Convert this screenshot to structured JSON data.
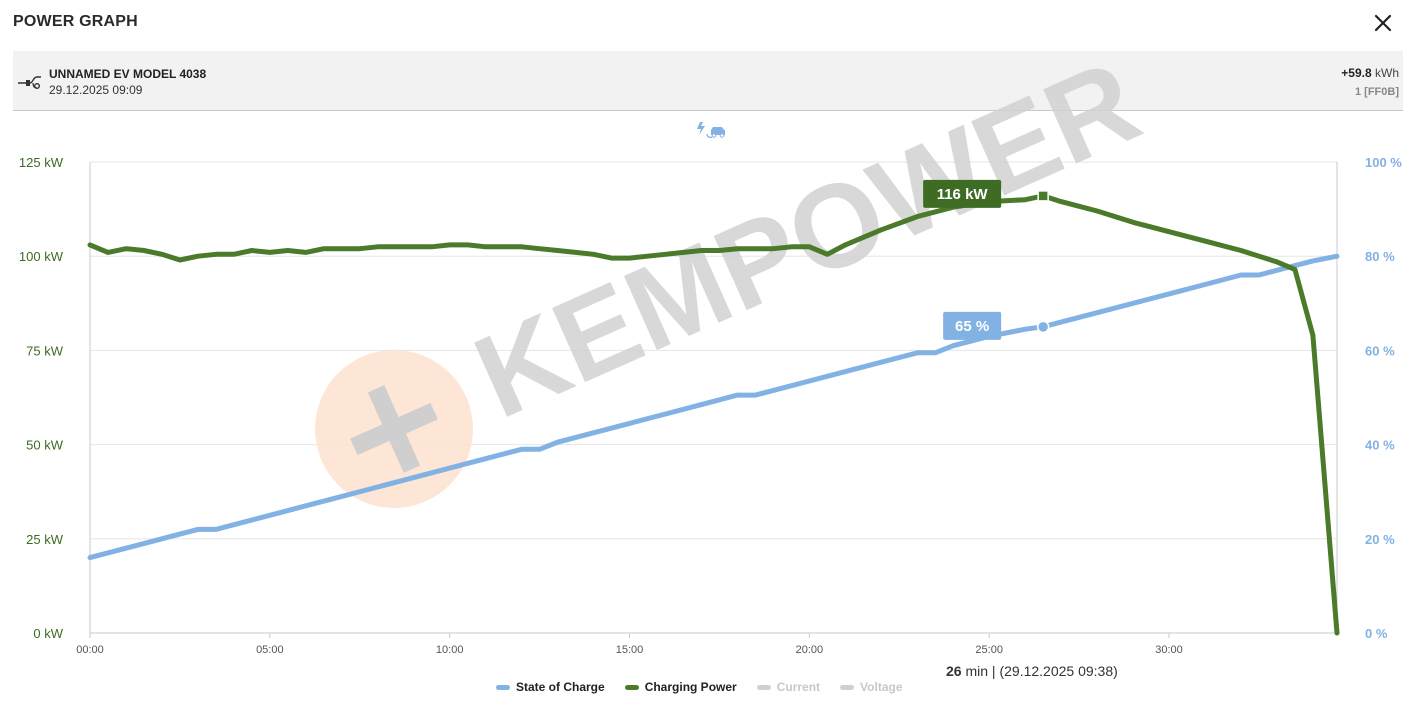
{
  "dialog": {
    "title": "POWER GRAPH"
  },
  "session": {
    "vehicle": "UNNAMED EV MODEL 4038",
    "datetime": "29.12.2025 09:09",
    "energy_value": "+59.8",
    "energy_unit": "kWh",
    "connector": "1 [FF0B]"
  },
  "icons": {
    "close": "close-icon",
    "plug": "plug-icon",
    "charging_mode": "ev-charging-icon"
  },
  "watermark": {
    "text": "KEMPOWER"
  },
  "colors": {
    "power": "#4a7a2a",
    "soc": "#82b1e3",
    "disabled": "#d0d0d0",
    "power_label": "#3d6b22"
  },
  "readout": {
    "minutes": "26",
    "unit": " min | ",
    "time": "(29.12.2025 09:38)"
  },
  "tooltips": {
    "power": "116 kW",
    "soc": "65 %"
  },
  "legend": [
    {
      "label": "State of Charge",
      "color": "#82b1e3",
      "enabled": true
    },
    {
      "label": "Charging Power",
      "color": "#4a7a2a",
      "enabled": true
    },
    {
      "label": "Current",
      "color": "#d0d0d0",
      "enabled": false
    },
    {
      "label": "Voltage",
      "color": "#d0d0d0",
      "enabled": false
    }
  ],
  "chart_data": {
    "type": "line",
    "x_unit": "minutes",
    "xlim": [
      0,
      34.67
    ],
    "x_ticks": [
      "00:00",
      "05:00",
      "10:00",
      "15:00",
      "20:00",
      "25:00",
      "30:00"
    ],
    "y_left": {
      "ticks": [
        "0 kW",
        "25 kW",
        "50 kW",
        "75 kW",
        "100 kW",
        "125 kW"
      ],
      "ylim": [
        0,
        125
      ]
    },
    "y_right": {
      "ticks": [
        "0 %",
        "20 %",
        "40 %",
        "60 %",
        "80 %",
        "100 %"
      ],
      "ylim": [
        0,
        100
      ]
    },
    "grid": true,
    "legend_position": "bottom",
    "highlight_x": 26.5,
    "series": [
      {
        "name": "State of Charge",
        "axis": "right",
        "x": [
          0,
          1,
          2,
          2.5,
          3,
          3.5,
          4,
          5,
          6,
          7,
          8,
          9,
          10,
          11,
          12,
          12.5,
          13,
          14,
          15,
          16,
          17,
          18,
          18.5,
          19,
          20,
          21,
          22,
          23,
          23.5,
          24,
          25,
          26,
          26.5,
          27,
          28,
          29,
          30,
          31,
          32,
          32.5,
          33,
          34,
          34.67
        ],
        "values": [
          16,
          18,
          20,
          21,
          22,
          22,
          23,
          25,
          27,
          29,
          31,
          33,
          35,
          37,
          39,
          39,
          40.5,
          42.5,
          44.5,
          46.5,
          48.5,
          50.5,
          50.5,
          51.5,
          53.5,
          55.5,
          57.5,
          59.5,
          59.5,
          61,
          63,
          64.5,
          65,
          66,
          68,
          70,
          72,
          74,
          76,
          76,
          77,
          79,
          80
        ]
      },
      {
        "name": "Charging Power",
        "axis": "left",
        "x": [
          0,
          0.5,
          1,
          1.5,
          2,
          2.5,
          3,
          3.5,
          4,
          4.5,
          5,
          5.5,
          6,
          6.5,
          7,
          7.5,
          8,
          8.5,
          9,
          9.5,
          10,
          10.5,
          11,
          11.5,
          12,
          12.5,
          13,
          13.5,
          14,
          14.5,
          15,
          15.5,
          16,
          16.5,
          17,
          17.5,
          18,
          18.5,
          19,
          19.5,
          20,
          20.5,
          21,
          22,
          23,
          24,
          25,
          26,
          26.5,
          27,
          28,
          29,
          30,
          31,
          32,
          33,
          33.5,
          34,
          34.67
        ],
        "values": [
          103,
          101,
          102,
          101.5,
          100.5,
          99,
          100,
          100.5,
          100.5,
          101.5,
          101,
          101.5,
          101,
          102,
          102,
          102,
          102.5,
          102.5,
          102.5,
          102.5,
          103,
          103,
          102.5,
          102.5,
          102.5,
          102,
          101.5,
          101,
          100.5,
          99.5,
          99.5,
          100,
          100.5,
          101,
          101.5,
          101.5,
          102,
          102,
          102,
          102.5,
          102.5,
          100.5,
          103,
          107,
          110.5,
          113,
          114.5,
          115,
          116,
          114.5,
          112,
          109,
          106.5,
          104,
          101.5,
          98.5,
          96.5,
          79,
          0
        ]
      }
    ]
  }
}
